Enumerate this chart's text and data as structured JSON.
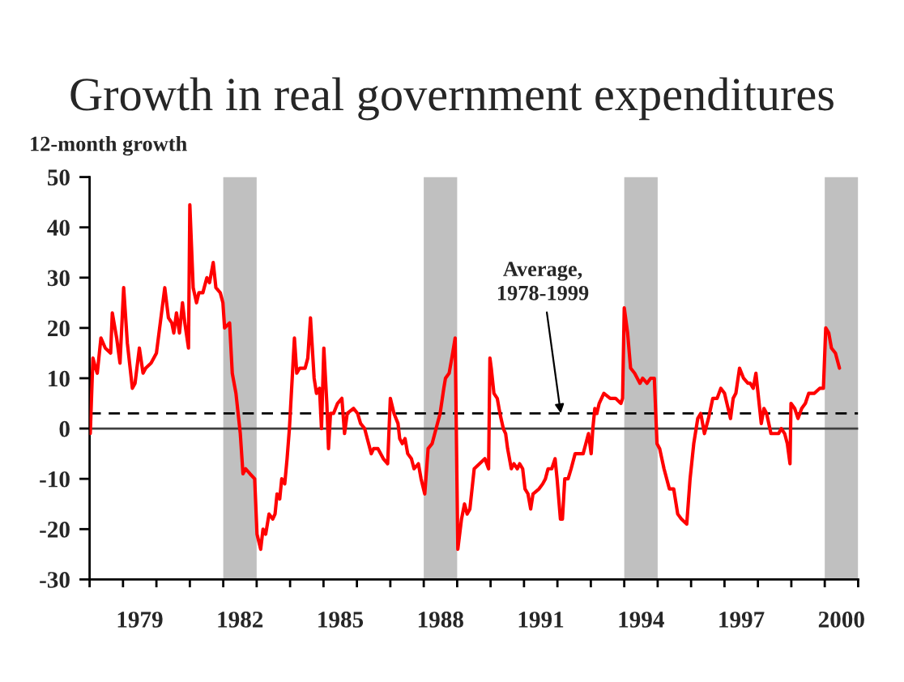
{
  "chart_data": {
    "type": "line",
    "title": "Growth in real government expenditures",
    "ylabel": "12-month growth",
    "xlim": [
      1978,
      2001
    ],
    "ylim": [
      -30,
      50
    ],
    "yticks": [
      -30,
      -20,
      -10,
      0,
      10,
      20,
      30,
      40,
      50
    ],
    "xticks": [
      {
        "value": 1978,
        "label": null
      },
      {
        "value": 1979,
        "label": null
      },
      {
        "value": 1980,
        "label": null
      },
      {
        "value": 1981,
        "label": null
      },
      {
        "value": 1982,
        "label": null
      },
      {
        "value": 1983,
        "label": null
      },
      {
        "value": 1984,
        "label": null
      },
      {
        "value": 1985,
        "label": null
      },
      {
        "value": 1986,
        "label": null
      },
      {
        "value": 1987,
        "label": null
      },
      {
        "value": 1988,
        "label": null
      },
      {
        "value": 1989,
        "label": null
      },
      {
        "value": 1990,
        "label": null
      },
      {
        "value": 1991,
        "label": null
      },
      {
        "value": 1992,
        "label": null
      },
      {
        "value": 1993,
        "label": null
      },
      {
        "value": 1994,
        "label": null
      },
      {
        "value": 1995,
        "label": null
      },
      {
        "value": 1996,
        "label": null
      },
      {
        "value": 1997,
        "label": null
      },
      {
        "value": 1998,
        "label": null
      },
      {
        "value": 1999,
        "label": null
      },
      {
        "value": 2000,
        "label": null
      },
      {
        "value": 2001,
        "label": null
      },
      {
        "value": 1979.5,
        "label": "1979"
      },
      {
        "value": 1982.5,
        "label": "1982"
      },
      {
        "value": 1985.5,
        "label": "1985"
      },
      {
        "value": 1988.5,
        "label": "1988"
      },
      {
        "value": 1991.5,
        "label": "1991"
      },
      {
        "value": 1994.5,
        "label": "1994"
      },
      {
        "value": 1997.5,
        "label": "1997"
      },
      {
        "value": 2000.5,
        "label": "2000"
      }
    ],
    "x": [
      1978.02,
      1978.1,
      1978.18,
      1978.23,
      1978.34,
      1978.47,
      1978.63,
      1978.68,
      1978.81,
      1978.91,
      1979.02,
      1979.13,
      1979.28,
      1979.36,
      1979.49,
      1979.6,
      1979.68,
      1979.84,
      1980.0,
      1980.25,
      1980.36,
      1980.46,
      1980.52,
      1980.6,
      1980.69,
      1980.78,
      1980.85,
      1980.96,
      1981.0,
      1981.1,
      1981.2,
      1981.27,
      1981.39,
      1981.51,
      1981.59,
      1981.7,
      1981.78,
      1981.91,
      1981.99,
      1982.04,
      1982.19,
      1982.27,
      1982.38,
      1982.51,
      1982.59,
      1982.67,
      1982.8,
      1982.94,
      1983.01,
      1983.12,
      1983.19,
      1983.27,
      1983.37,
      1983.48,
      1983.55,
      1983.61,
      1983.69,
      1983.75,
      1983.84,
      1983.91,
      1983.98,
      1984.13,
      1984.2,
      1984.29,
      1984.45,
      1984.53,
      1984.61,
      1984.72,
      1984.79,
      1984.88,
      1984.94,
      1985.01,
      1985.1,
      1985.15,
      1985.21,
      1985.3,
      1985.42,
      1985.55,
      1985.63,
      1985.71,
      1985.9,
      1986.02,
      1986.11,
      1986.23,
      1986.31,
      1986.43,
      1986.5,
      1986.63,
      1986.79,
      1986.92,
      1987.0,
      1987.11,
      1987.23,
      1987.28,
      1987.36,
      1987.44,
      1987.52,
      1987.63,
      1987.71,
      1987.84,
      1987.92,
      1988.03,
      1988.13,
      1988.25,
      1988.37,
      1988.49,
      1988.6,
      1988.65,
      1988.76,
      1988.84,
      1988.94,
      1989.02,
      1989.13,
      1989.22,
      1989.3,
      1989.38,
      1989.51,
      1989.67,
      1989.83,
      1989.94,
      1989.98,
      1990.02,
      1990.1,
      1990.2,
      1990.28,
      1990.38,
      1990.45,
      1990.51,
      1990.62,
      1990.7,
      1990.8,
      1990.87,
      1990.96,
      1991.03,
      1991.12,
      1991.2,
      1991.27,
      1991.45,
      1991.56,
      1991.64,
      1991.72,
      1991.83,
      1991.93,
      1991.99,
      1992.09,
      1992.15,
      1992.22,
      1992.32,
      1992.41,
      1992.53,
      1992.64,
      1992.77,
      1992.85,
      1992.93,
      1993.01,
      1993.06,
      1993.12,
      1993.18,
      1993.25,
      1993.39,
      1993.58,
      1993.74,
      1993.9,
      1993.95,
      1994.0,
      1994.1,
      1994.19,
      1994.31,
      1994.39,
      1994.47,
      1994.55,
      1994.68,
      1994.79,
      1994.9,
      1994.98,
      1995.06,
      1995.19,
      1995.35,
      1995.48,
      1995.6,
      1995.71,
      1995.87,
      1995.97,
      1996.08,
      1996.2,
      1996.29,
      1996.4,
      1996.52,
      1996.65,
      1996.78,
      1996.89,
      1997.0,
      1997.18,
      1997.26,
      1997.34,
      1997.45,
      1997.57,
      1997.7,
      1997.77,
      1997.86,
      1997.94,
      1998.02,
      1998.1,
      1998.18,
      1998.26,
      1998.39,
      1998.5,
      1998.62,
      1998.7,
      1998.8,
      1998.88,
      1998.96,
      1998.99,
      1999.1,
      1999.2,
      1999.31,
      1999.42,
      1999.52,
      1999.69,
      1999.85,
      1999.96,
      2000.03,
      2000.12,
      2000.2,
      2000.32,
      2000.44
    ],
    "series": [
      {
        "color": "#ff0000",
        "values": [
          -1,
          14,
          12,
          11,
          18,
          16,
          15,
          23,
          18,
          13,
          28,
          17,
          8,
          9,
          16,
          11,
          12,
          13,
          15,
          28,
          22,
          21,
          19,
          23,
          19,
          25,
          21,
          16,
          44.5,
          28,
          25,
          27,
          27,
          30,
          29,
          33,
          28,
          27,
          25,
          20,
          21,
          11,
          7,
          -1,
          -9,
          -8,
          -9,
          -10,
          -21,
          -24,
          -20,
          -21,
          -17,
          -18,
          -17,
          -13,
          -14,
          -10,
          -11,
          -6,
          0,
          18,
          11,
          12,
          12,
          14,
          22,
          10,
          7,
          8,
          0,
          16,
          5,
          -4,
          3,
          3,
          5,
          6,
          -1,
          3,
          4,
          3,
          1,
          0,
          -2,
          -5,
          -4,
          -4,
          -6,
          -7,
          6,
          3,
          1,
          -2,
          -3,
          -2,
          -5,
          -6,
          -8,
          -7,
          -10,
          -13,
          -4,
          -3,
          0,
          3,
          8,
          10,
          11,
          14,
          18,
          -24,
          -18,
          -15,
          -17,
          -16,
          -8,
          -7,
          -6,
          -8,
          14,
          12,
          7,
          6,
          3,
          0,
          -1,
          -4,
          -8,
          -7,
          -8,
          -7,
          -8,
          -12,
          -13,
          -16,
          -13,
          -12,
          -11,
          -10,
          -8,
          -8,
          -6,
          -10,
          -18,
          -18,
          -10,
          -10,
          -8,
          -5,
          -5,
          -5,
          -3,
          -1,
          -5,
          0,
          4,
          3,
          5,
          7,
          6,
          6,
          5,
          6,
          24,
          19,
          12,
          11,
          10,
          9,
          10,
          9,
          10,
          10,
          -3,
          -4,
          -8,
          -12,
          -12,
          -17,
          -18,
          -19,
          -10,
          -3,
          2,
          3,
          -1,
          2,
          6,
          6,
          8,
          7,
          2,
          6,
          7,
          12,
          10,
          9,
          9,
          8,
          11,
          6,
          1,
          4,
          3,
          -1,
          -1,
          -1,
          0,
          -1,
          -3,
          -7,
          5,
          4,
          2,
          4,
          5,
          7,
          7,
          8,
          8,
          20,
          19,
          16,
          15,
          12
        ]
      }
    ],
    "bands": [
      {
        "axis": "x",
        "from": 1982,
        "to": 1983,
        "color": "#c0c0c0"
      },
      {
        "axis": "x",
        "from": 1988,
        "to": 1989,
        "color": "#c0c0c0"
      },
      {
        "axis": "x",
        "from": 1994,
        "to": 1995,
        "color": "#c0c0c0"
      },
      {
        "axis": "x",
        "from": 2000,
        "to": 2001,
        "color": "#c0c0c0"
      }
    ],
    "ref_lines": [
      {
        "axis": "y",
        "value": 0,
        "color": "#404040",
        "line_style": "solid"
      },
      {
        "axis": "y",
        "value": 3,
        "color": "#000000",
        "line_style": "dashed"
      }
    ],
    "annotations": [
      {
        "text": "Average,\n1978-1999",
        "x": 1992.1,
        "y": 3
      }
    ]
  }
}
